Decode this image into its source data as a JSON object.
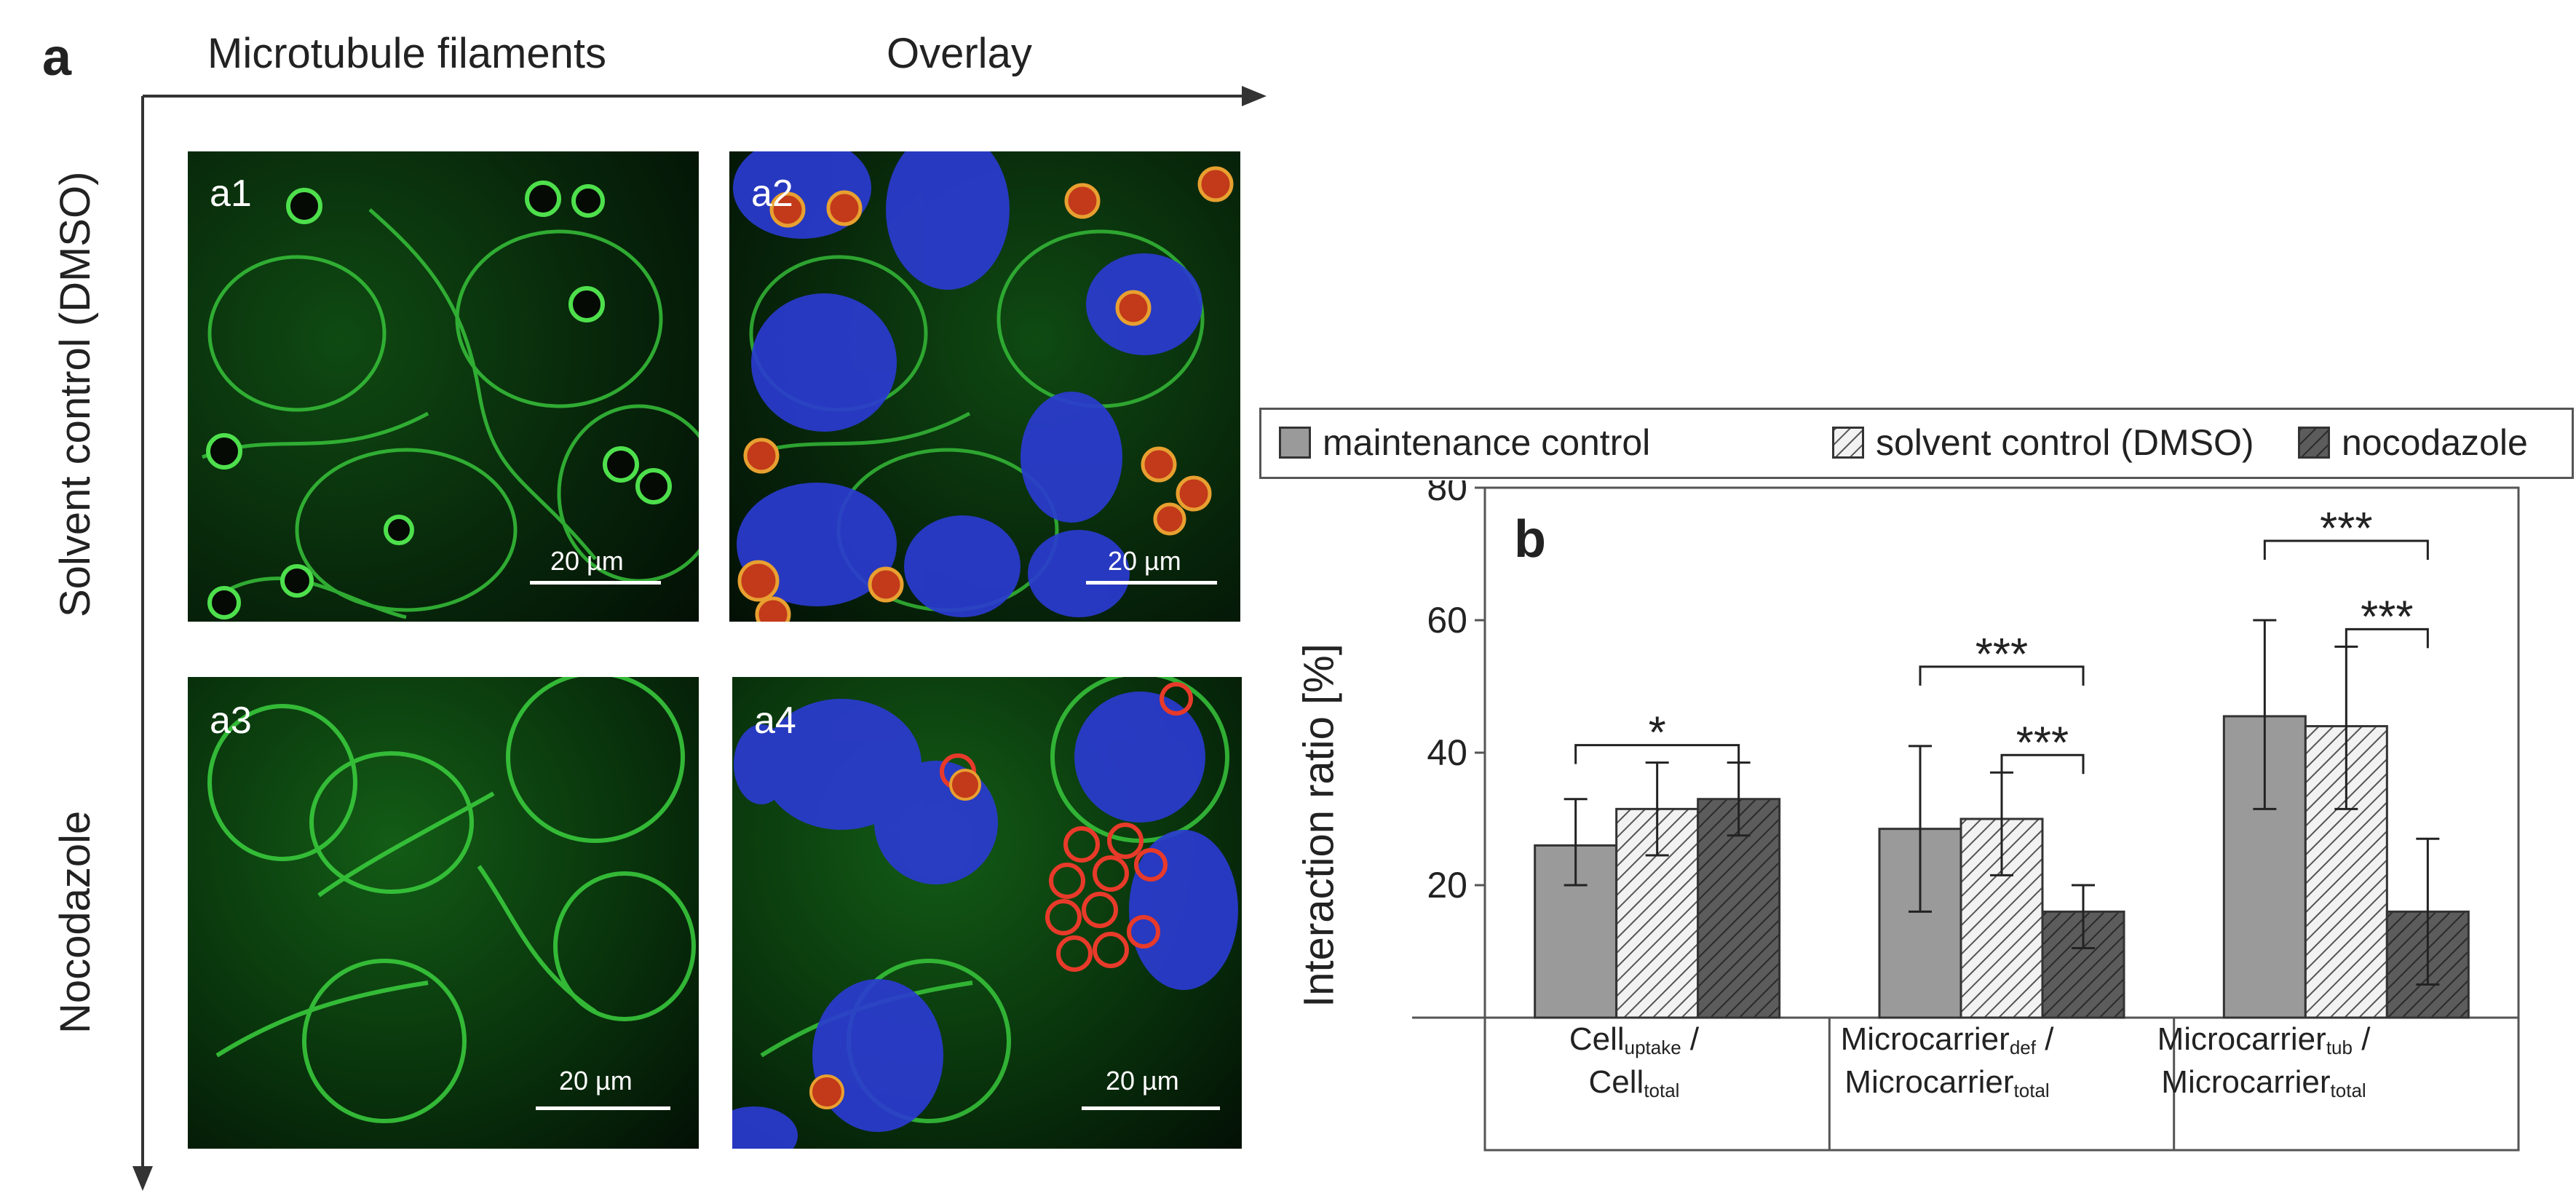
{
  "panel_a": {
    "letter": "a",
    "col_headers": [
      "Microtubule filaments",
      "Overlay"
    ],
    "row_headers": [
      "Solvent control (DMSO)",
      "Nocodazole"
    ],
    "images": [
      {
        "tag": "a1",
        "scale": "20 µm"
      },
      {
        "tag": "a2",
        "scale": "20 µm"
      },
      {
        "tag": "a3",
        "scale": "20 µm"
      },
      {
        "tag": "a4",
        "scale": "20 µm"
      }
    ]
  },
  "panel_b": {
    "letter": "b"
  },
  "chart_data": {
    "type": "bar",
    "ylabel": "Interaction ratio [%]",
    "ylim": [
      0,
      80
    ],
    "yticks": [
      20,
      40,
      60,
      80
    ],
    "legend": [
      "maintenance control",
      "solvent control (DMSO)",
      "nocodazole"
    ],
    "categories": [
      {
        "main": "Cell",
        "sub": "uptake",
        "sep": " /",
        "main2": "Cell",
        "sub2": "total"
      },
      {
        "main": "Microcarrier",
        "sub": "def",
        "sep": " /",
        "main2": "Microcarrier",
        "sub2": "total"
      },
      {
        "main": "Microcarrier",
        "sub": "tub",
        "sep": " /",
        "main2": "Microcarrier",
        "sub2": "total"
      }
    ],
    "series": [
      {
        "name": "maintenance control",
        "values": [
          26,
          28.5,
          45.5
        ],
        "err_low": [
          20,
          16,
          31.5
        ],
        "err_high": [
          33,
          41,
          60
        ],
        "fill": "#9a9a9a"
      },
      {
        "name": "solvent control (DMSO)",
        "values": [
          31.5,
          30,
          44
        ],
        "err_low": [
          24.5,
          21.5,
          31.5
        ],
        "err_high": [
          38.5,
          37,
          56
        ],
        "fill": "hatch-light"
      },
      {
        "name": "nocodazole",
        "values": [
          33,
          16,
          16
        ],
        "err_low": [
          27.5,
          10.5,
          5
        ],
        "err_high": [
          38.5,
          20,
          27
        ],
        "fill": "hatch-dark"
      }
    ],
    "significance": [
      {
        "group": 0,
        "from": 0,
        "to": 2,
        "level": 1,
        "label": "*"
      },
      {
        "group": 1,
        "from": 0,
        "to": 2,
        "level": 2,
        "label": "***"
      },
      {
        "group": 1,
        "from": 1,
        "to": 2,
        "level": 1,
        "label": "***"
      },
      {
        "group": 2,
        "from": 0,
        "to": 2,
        "level": 2,
        "label": "***"
      },
      {
        "group": 2,
        "from": 1,
        "to": 2,
        "level": 1,
        "label": "***"
      }
    ]
  }
}
